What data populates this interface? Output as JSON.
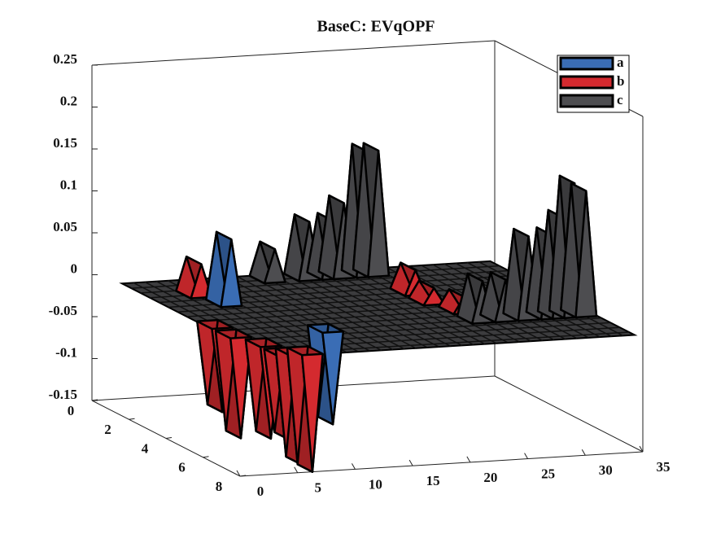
{
  "chart_data": {
    "type": "surface3d",
    "title": "BaseC: EVqOPF",
    "xlim": [
      0,
      35
    ],
    "xticks": [
      0,
      5,
      10,
      15,
      20,
      25,
      30,
      35
    ],
    "ylim": [
      0,
      8
    ],
    "yticks": [
      0,
      2,
      4,
      6,
      8
    ],
    "zlim": [
      -0.15,
      0.25
    ],
    "zticks": [
      -0.15,
      -0.1,
      -0.05,
      0,
      0.05,
      0.1,
      0.15,
      0.2,
      0.25
    ],
    "legend": "northeast",
    "series": [
      {
        "name": "a",
        "color": "#3a6db5",
        "x": [
          6,
          10,
          24,
          26
        ],
        "y": [
          3,
          6,
          5,
          5
        ],
        "values": [
          0.08,
          -0.11,
          -0.01,
          -0.01
        ]
      },
      {
        "name": "b",
        "color": "#d42a2f",
        "x": [
          5,
          2,
          2,
          3,
          3,
          4,
          5,
          22,
          22,
          23,
          24
        ],
        "y": [
          2,
          5,
          6,
          7,
          8,
          8,
          8,
          3,
          4,
          5,
          6
        ],
        "values": [
          0.04,
          -0.1,
          -0.12,
          -0.11,
          -0.1,
          -0.13,
          -0.14,
          0.03,
          0.02,
          0.02,
          0.01
        ]
      },
      {
        "name": "c",
        "color": "#4d4d50",
        "x": [
          13,
          16,
          18,
          19,
          21,
          22,
          23,
          25,
          27,
          29,
          30,
          31,
          32
        ],
        "y": [
          1,
          1,
          1,
          1,
          1,
          1,
          6,
          6,
          6,
          6,
          6,
          6,
          6
        ],
        "values": [
          0.04,
          0.07,
          0.07,
          0.09,
          0.15,
          0.15,
          0.05,
          0.05,
          0.1,
          0.1,
          0.12,
          0.16,
          0.15
        ]
      }
    ]
  }
}
